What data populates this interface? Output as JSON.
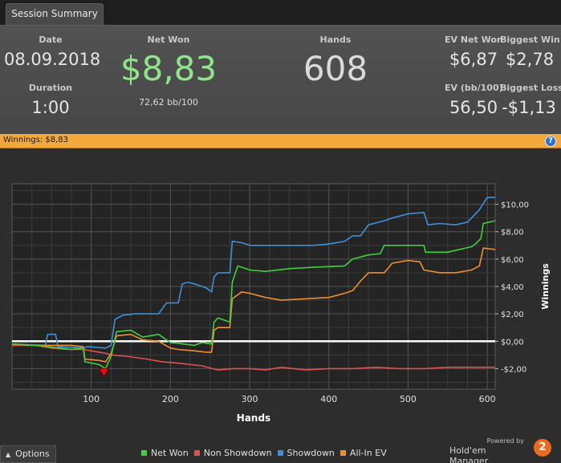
{
  "tabs": [
    {
      "label": "Session Summary"
    }
  ],
  "stats": {
    "date_label": "Date",
    "date_value": "08.09.2018",
    "duration_label": "Duration",
    "duration_value": "1:00",
    "net_won_label": "Net Won",
    "net_won_value": "$8,83",
    "net_won_bb": "72,62 bb/100",
    "hands_label": "Hands",
    "hands_value": "608",
    "ev_net_won_label": "EV Net Won",
    "ev_net_won_value": "$6,87",
    "biggest_win_label": "Biggest Win",
    "biggest_win_value": "$2,78",
    "ev_bb_label": "EV (bb/100)",
    "ev_bb_value": "56,50",
    "biggest_loss_label": "Biggest Loss",
    "biggest_loss_value": "-$1,13"
  },
  "colors": {
    "net_won_text": "#8fe68a",
    "winbar": "#f2a83b",
    "net_won": "#3fd03f",
    "non_showdown": "#e05050",
    "showdown": "#3f8fd9",
    "all_in_ev": "#ef8f2f"
  },
  "winbar": {
    "label": "Winnings: $8,83",
    "help_icon": "?"
  },
  "chart_data": {
    "type": "line",
    "title": "",
    "xlabel": "Hands",
    "ylabel": "Winnings",
    "xlim": [
      0,
      610
    ],
    "ylim": [
      -3.5,
      11.5
    ],
    "x_ticks": [
      100,
      200,
      300,
      400,
      500,
      600
    ],
    "x_tick_labels": [
      "100",
      "200",
      "300",
      "400",
      "500",
      "600"
    ],
    "y_ticks": [
      -2,
      0,
      2,
      4,
      6,
      8,
      10
    ],
    "y_tick_labels": [
      "-$2,00",
      "$0,00",
      "$2,00",
      "$4,00",
      "$6,00",
      "$8,00",
      "$10,00"
    ],
    "zero_line": 0,
    "marker": {
      "name": "biggest-loss-marker",
      "x": 116,
      "y": -2.1
    },
    "series": [
      {
        "name": "Net Won",
        "points": [
          [
            0,
            -0.2
          ],
          [
            30,
            -0.3
          ],
          [
            45,
            -0.4
          ],
          [
            60,
            -0.5
          ],
          [
            75,
            -0.6
          ],
          [
            90,
            -0.5
          ],
          [
            92,
            -1.5
          ],
          [
            110,
            -1.7
          ],
          [
            118,
            -2.0
          ],
          [
            125,
            -1.1
          ],
          [
            132,
            0.7
          ],
          [
            150,
            0.8
          ],
          [
            165,
            0.3
          ],
          [
            185,
            0.5
          ],
          [
            200,
            -0.1
          ],
          [
            210,
            -0.15
          ],
          [
            230,
            -0.3
          ],
          [
            240,
            -0.1
          ],
          [
            252,
            -0.2
          ],
          [
            255,
            1.4
          ],
          [
            260,
            1.7
          ],
          [
            275,
            1.4
          ],
          [
            278,
            4.3
          ],
          [
            285,
            5.5
          ],
          [
            300,
            5.2
          ],
          [
            320,
            5.1
          ],
          [
            350,
            5.3
          ],
          [
            380,
            5.4
          ],
          [
            420,
            5.5
          ],
          [
            430,
            6.0
          ],
          [
            450,
            6.3
          ],
          [
            465,
            6.4
          ],
          [
            470,
            7.0
          ],
          [
            490,
            7.0
          ],
          [
            520,
            7.0
          ],
          [
            522,
            6.5
          ],
          [
            550,
            6.5
          ],
          [
            580,
            6.9
          ],
          [
            585,
            7.1
          ],
          [
            592,
            7.5
          ],
          [
            595,
            8.6
          ],
          [
            610,
            8.8
          ]
        ]
      },
      {
        "name": "Non Showdown",
        "points": [
          [
            0,
            -0.3
          ],
          [
            30,
            -0.3
          ],
          [
            50,
            -0.5
          ],
          [
            70,
            -0.6
          ],
          [
            90,
            -0.6
          ],
          [
            100,
            -0.7
          ],
          [
            120,
            -0.9
          ],
          [
            125,
            -1.0
          ],
          [
            145,
            -1.1
          ],
          [
            170,
            -1.3
          ],
          [
            190,
            -1.5
          ],
          [
            210,
            -1.6
          ],
          [
            240,
            -1.8
          ],
          [
            260,
            -2.1
          ],
          [
            280,
            -2.0
          ],
          [
            300,
            -2.0
          ],
          [
            320,
            -2.1
          ],
          [
            340,
            -1.9
          ],
          [
            370,
            -2.1
          ],
          [
            400,
            -2.0
          ],
          [
            430,
            -2.0
          ],
          [
            460,
            -1.9
          ],
          [
            490,
            -2.0
          ],
          [
            520,
            -2.0
          ],
          [
            550,
            -1.9
          ],
          [
            580,
            -1.9
          ],
          [
            610,
            -1.9
          ]
        ]
      },
      {
        "name": "Showdown",
        "points": [
          [
            0,
            -0.2
          ],
          [
            42,
            -0.3
          ],
          [
            45,
            0.5
          ],
          [
            55,
            0.5
          ],
          [
            58,
            -0.4
          ],
          [
            90,
            -0.5
          ],
          [
            95,
            -0.4
          ],
          [
            118,
            -0.5
          ],
          [
            125,
            -0.3
          ],
          [
            130,
            1.6
          ],
          [
            140,
            1.9
          ],
          [
            155,
            2.0
          ],
          [
            170,
            2.0
          ],
          [
            185,
            2.0
          ],
          [
            195,
            2.8
          ],
          [
            200,
            2.8
          ],
          [
            210,
            2.8
          ],
          [
            215,
            4.2
          ],
          [
            222,
            4.3
          ],
          [
            230,
            4.2
          ],
          [
            240,
            4.0
          ],
          [
            245,
            3.9
          ],
          [
            252,
            3.6
          ],
          [
            255,
            4.7
          ],
          [
            260,
            5.0
          ],
          [
            275,
            5.0
          ],
          [
            278,
            7.3
          ],
          [
            290,
            7.2
          ],
          [
            300,
            7.0
          ],
          [
            330,
            7.0
          ],
          [
            360,
            7.0
          ],
          [
            380,
            7.0
          ],
          [
            400,
            7.1
          ],
          [
            420,
            7.3
          ],
          [
            430,
            7.7
          ],
          [
            440,
            7.7
          ],
          [
            450,
            8.5
          ],
          [
            470,
            8.8
          ],
          [
            480,
            9.0
          ],
          [
            500,
            9.3
          ],
          [
            520,
            9.4
          ],
          [
            525,
            8.5
          ],
          [
            540,
            8.6
          ],
          [
            560,
            8.5
          ],
          [
            575,
            8.7
          ],
          [
            590,
            9.6
          ],
          [
            600,
            10.5
          ],
          [
            610,
            10.5
          ]
        ]
      },
      {
        "name": "All-In EV",
        "points": [
          [
            0,
            -0.2
          ],
          [
            30,
            -0.3
          ],
          [
            45,
            -0.3
          ],
          [
            60,
            -0.3
          ],
          [
            75,
            -0.3
          ],
          [
            90,
            -0.4
          ],
          [
            92,
            -1.3
          ],
          [
            110,
            -1.4
          ],
          [
            118,
            -1.5
          ],
          [
            125,
            -0.9
          ],
          [
            132,
            0.4
          ],
          [
            150,
            0.5
          ],
          [
            165,
            0.1
          ],
          [
            185,
            0.0
          ],
          [
            200,
            -0.5
          ],
          [
            210,
            -0.6
          ],
          [
            230,
            -0.7
          ],
          [
            245,
            -0.8
          ],
          [
            252,
            -0.8
          ],
          [
            255,
            0.8
          ],
          [
            260,
            1.0
          ],
          [
            275,
            1.0
          ],
          [
            278,
            3.1
          ],
          [
            290,
            3.6
          ],
          [
            300,
            3.5
          ],
          [
            320,
            3.2
          ],
          [
            340,
            3.0
          ],
          [
            370,
            3.1
          ],
          [
            400,
            3.2
          ],
          [
            420,
            3.5
          ],
          [
            430,
            3.7
          ],
          [
            440,
            4.4
          ],
          [
            450,
            5.0
          ],
          [
            470,
            5.0
          ],
          [
            480,
            5.7
          ],
          [
            500,
            5.9
          ],
          [
            515,
            5.8
          ],
          [
            520,
            5.2
          ],
          [
            540,
            5.0
          ],
          [
            560,
            5.0
          ],
          [
            580,
            5.2
          ],
          [
            590,
            5.5
          ],
          [
            595,
            6.8
          ],
          [
            610,
            6.7
          ]
        ]
      }
    ],
    "legend": [
      "Net Won",
      "Non Showdown",
      "Showdown",
      "All-In EV"
    ]
  },
  "footer": {
    "options_label": "Options",
    "powered_by": "Powered by",
    "brand_name": "Hold'em Manager",
    "brand_version": "2"
  }
}
